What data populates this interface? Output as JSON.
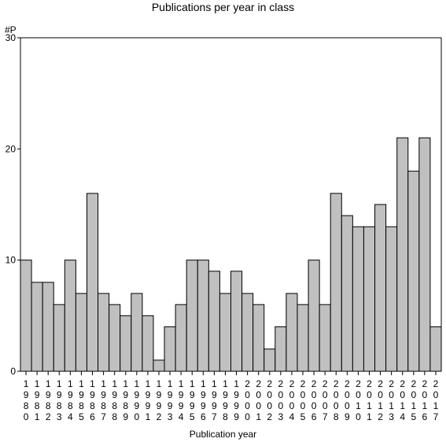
{
  "chart_data": {
    "type": "bar",
    "title": "Publications per year in class",
    "ylabel": "#P",
    "xlabel": "Publication year",
    "ylim": [
      0,
      30
    ],
    "yticks": [
      0,
      10,
      20,
      30
    ],
    "grid": false,
    "bar_color": "#c0c0c0",
    "categories": [
      "1980",
      "1981",
      "1982",
      "1983",
      "1984",
      "1985",
      "1986",
      "1987",
      "1988",
      "1989",
      "1990",
      "1991",
      "1992",
      "1993",
      "1994",
      "1995",
      "1996",
      "1997",
      "1998",
      "1999",
      "2000",
      "2001",
      "2002",
      "2003",
      "2004",
      "2005",
      "2006",
      "2007",
      "2008",
      "2009",
      "2010",
      "2011",
      "2012",
      "2013",
      "2014",
      "2015",
      "2016",
      "2017"
    ],
    "values": [
      10,
      8,
      8,
      6,
      10,
      7,
      16,
      7,
      6,
      5,
      7,
      5,
      1,
      4,
      6,
      10,
      10,
      9,
      7,
      9,
      7,
      6,
      2,
      4,
      7,
      6,
      10,
      6,
      16,
      14,
      13,
      13,
      15,
      13,
      21,
      18,
      21,
      4
    ]
  }
}
